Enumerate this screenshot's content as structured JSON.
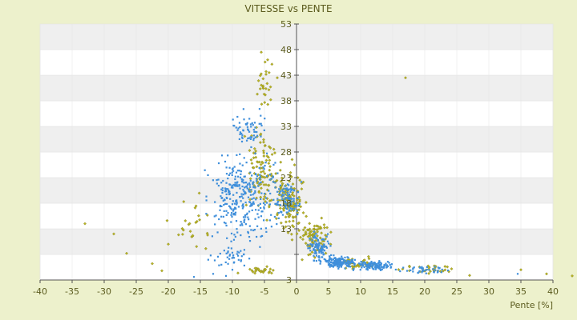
{
  "chart_data": {
    "type": "scatter",
    "title": "VITESSE vs PENTE",
    "xlabel": "Pente [%]",
    "ylabel": "",
    "xlim": [
      -40,
      40
    ],
    "ylim": [
      3,
      53
    ],
    "x_ticks": [
      -40,
      -35,
      -30,
      -25,
      -20,
      -15,
      -10,
      -5,
      0,
      5,
      10,
      15,
      20,
      25,
      30,
      35,
      40
    ],
    "y_ticks": [
      3,
      8,
      13,
      18,
      23,
      28,
      33,
      38,
      43,
      48,
      53
    ],
    "y_tick_labels": [
      "3",
      "",
      "13",
      "18",
      "23",
      "28",
      "33",
      "38",
      "43",
      "48",
      "53"
    ],
    "x_tick_labels": [
      "-40",
      "-35",
      "-30",
      "-25",
      "-20",
      "-15",
      "-10",
      "-5",
      "0",
      "5",
      "10",
      "15",
      "20",
      "25",
      "30",
      "35",
      "40"
    ],
    "grid": true,
    "band_colors": [
      "#ffffff",
      "#efefef"
    ],
    "series": [
      {
        "color": "#3f8fdb",
        "marker": "dot",
        "clusters": [
          {
            "x": [
              -16,
              -1
            ],
            "y": [
              8,
              30
            ],
            "n": 320
          },
          {
            "x": [
              -12,
              -3
            ],
            "y": [
              28,
              37
            ],
            "n": 60
          },
          {
            "x": [
              -14,
              -6
            ],
            "y": [
              5,
              10
            ],
            "n": 40
          },
          {
            "x": [
              -4,
              1
            ],
            "y": [
              14,
              24
            ],
            "n": 90
          },
          {
            "x": [
              1,
              6
            ],
            "y": [
              6,
              13
            ],
            "n": 90
          },
          {
            "x": [
              3,
              10
            ],
            "y": [
              5,
              8
            ],
            "n": 170
          },
          {
            "x": [
              8,
              16
            ],
            "y": [
              4.5,
              7
            ],
            "n": 110
          },
          {
            "x": [
              15,
              25
            ],
            "y": [
              4,
              6
            ],
            "n": 40
          }
        ],
        "points": [
          [
            -10,
            5
          ],
          [
            -13,
            4.2
          ],
          [
            -11,
            3.8
          ],
          [
            34.5,
            4.2
          ],
          [
            -16,
            3.6
          ],
          [
            22,
            4.5
          ]
        ]
      },
      {
        "color": "#b8b425",
        "marker": "diamond",
        "clusters": [
          {
            "x": [
              -9,
              -2
            ],
            "y": [
              14,
              35
            ],
            "n": 110
          },
          {
            "x": [
              -7,
              -3
            ],
            "y": [
              35,
              48
            ],
            "n": 25
          },
          {
            "x": [
              -4,
              2
            ],
            "y": [
              8,
              28
            ],
            "n": 130
          },
          {
            "x": [
              -21,
              -12
            ],
            "y": [
              5,
              23
            ],
            "n": 25
          },
          {
            "x": [
              0,
              6
            ],
            "y": [
              6,
              16
            ],
            "n": 80
          },
          {
            "x": [
              5,
              14
            ],
            "y": [
              4.5,
              8
            ],
            "n": 40
          },
          {
            "x": [
              14,
              27
            ],
            "y": [
              3.8,
              6.5
            ],
            "n": 30
          },
          {
            "x": [
              -10,
              -2
            ],
            "y": [
              3.8,
              6
            ],
            "n": 25
          }
        ],
        "points": [
          [
            -33,
            14
          ],
          [
            -28.5,
            12
          ],
          [
            -26.5,
            8.2
          ],
          [
            -21,
            4.8
          ],
          [
            -20,
            10
          ],
          [
            -22.5,
            6.2
          ],
          [
            17,
            42.5
          ],
          [
            39,
            4.2
          ],
          [
            43,
            3.8
          ],
          [
            35,
            5
          ],
          [
            27,
            3.9
          ],
          [
            -5.5,
            47.5
          ],
          [
            -4.5,
            46
          ],
          [
            -3,
            42.5
          ]
        ]
      }
    ]
  }
}
